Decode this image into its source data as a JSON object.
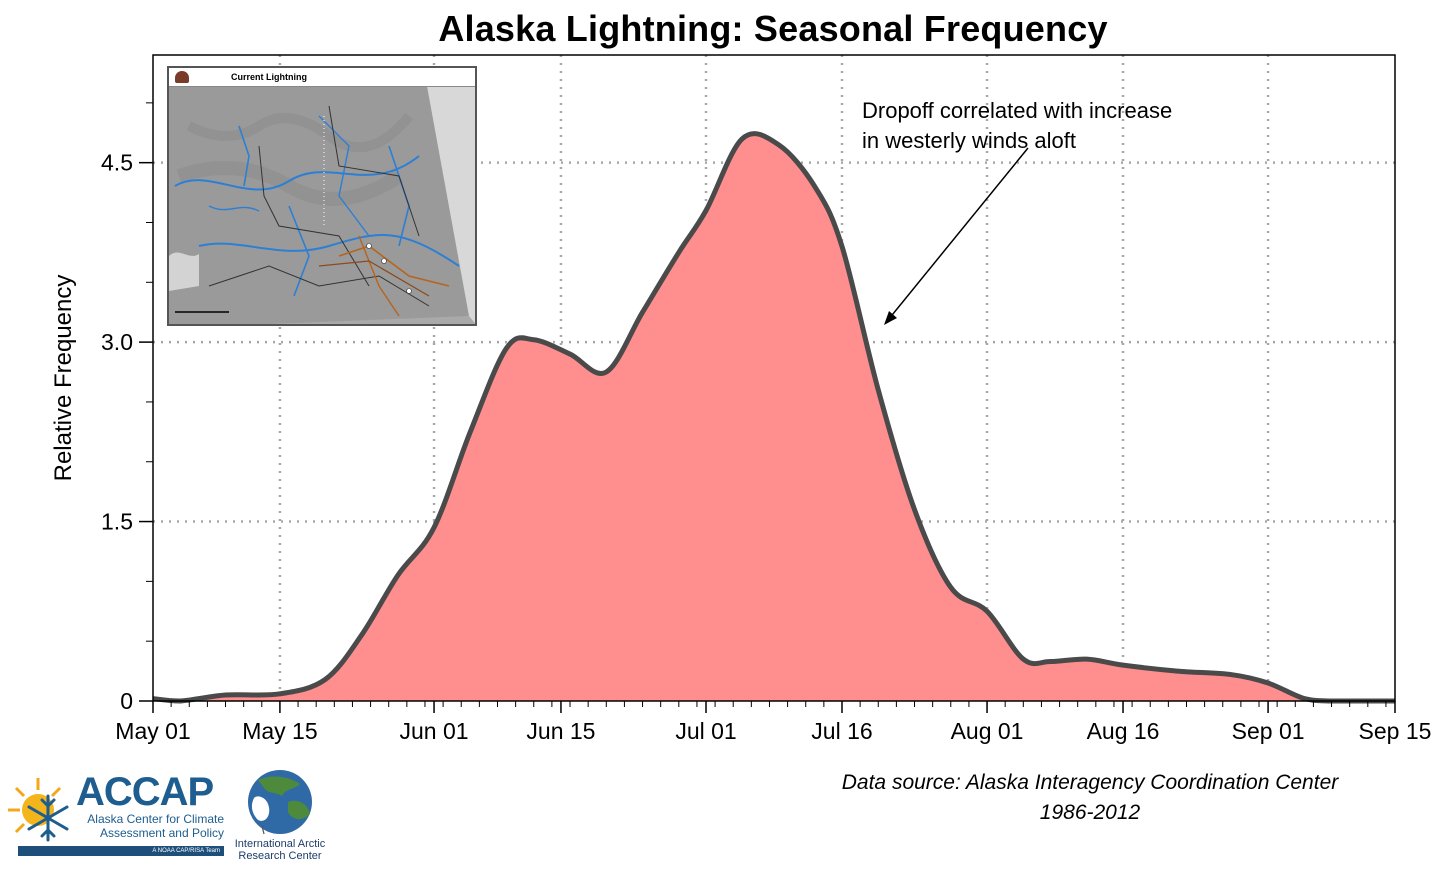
{
  "title": "Alaska Lightning: Seasonal Frequency",
  "annotation": {
    "line1": "Dropoff correlated with increase",
    "line2": "in westerly winds aloft"
  },
  "source": {
    "line1": "Data source: Alaska Interagency Coordination Center",
    "line2": "1986-2012"
  },
  "inset": {
    "title": "Current Lightning"
  },
  "logos": {
    "accap_name": "ACCAP",
    "accap_line1": "Alaska Center for Climate",
    "accap_line2": "Assessment and Policy",
    "accap_tag": "A NOAA CAP/RISA Team",
    "iarc_line1": "International Arctic",
    "iarc_line2": "Research Center"
  },
  "colors": {
    "fill": "#ff8e8e",
    "line": "#4a4a4a",
    "grid": "#a8a8a8"
  },
  "chart_data": {
    "type": "area",
    "title": "Alaska Lightning: Seasonal Frequency",
    "xlabel": "",
    "ylabel": "Relative Frequency",
    "x_ticks": [
      "May 01",
      "May 15",
      "Jun 01",
      "Jun 15",
      "Jul 01",
      "Jul 16",
      "Aug 01",
      "Aug 16",
      "Sep 01",
      "Sep 15"
    ],
    "y_ticks": [
      "0",
      "1.5",
      "3.0",
      "4.5"
    ],
    "ylim": [
      0,
      5.4
    ],
    "xlim": [
      "May 01",
      "Sep 15"
    ],
    "grid": true,
    "series": [
      {
        "x": [
          "May 01",
          "May 04",
          "May 09",
          "May 15",
          "May 20",
          "May 24",
          "May 28",
          "Jun 01",
          "Jun 05",
          "Jun 09",
          "Jun 12",
          "Jun 16",
          "Jun 20",
          "Jun 24",
          "Jun 28",
          "Jul 01",
          "Jul 05",
          "Jul 09",
          "Jul 13",
          "Jul 16",
          "Jul 20",
          "Jul 24",
          "Jul 28",
          "Aug 01",
          "Aug 05",
          "Aug 08",
          "Aug 12",
          "Aug 16",
          "Aug 22",
          "Aug 28",
          "Sep 01",
          "Sep 05",
          "Sep 08",
          "Sep 15"
        ],
        "y": [
          0.02,
          0.0,
          0.05,
          0.06,
          0.18,
          0.55,
          1.05,
          1.45,
          2.25,
          2.95,
          3.02,
          2.9,
          2.75,
          3.25,
          3.75,
          4.1,
          4.7,
          4.65,
          4.3,
          3.8,
          2.6,
          1.6,
          0.95,
          0.75,
          0.35,
          0.33,
          0.35,
          0.3,
          0.25,
          0.22,
          0.15,
          0.02,
          0.0,
          0.0
        ]
      }
    ]
  }
}
